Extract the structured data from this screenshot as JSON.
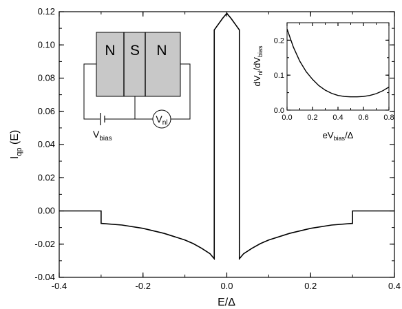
{
  "chart_data": [
    {
      "type": "line",
      "xlabel": "E/Δ",
      "ylabel_main": "I",
      "ylabel_sub": "qp",
      "ylabel_tail": " (E)",
      "xlim": [
        -0.4,
        0.4
      ],
      "ylim": [
        -0.04,
        0.12
      ],
      "x_ticks": [
        "-0.4",
        "-0.2",
        "0.0",
        "0.2",
        "0.4"
      ],
      "y_ticks": [
        "-0.04",
        "-0.02",
        "0.00",
        "0.02",
        "0.04",
        "0.06",
        "0.08",
        "0.10",
        "0.12"
      ],
      "series": [
        {
          "x": [
            -0.4,
            -0.3,
            -0.3,
            -0.25,
            -0.2,
            -0.15,
            -0.1,
            -0.08,
            -0.06,
            -0.04,
            -0.03,
            -0.03,
            -0.02,
            -0.01,
            0.0,
            0.01,
            0.02,
            0.03,
            0.03,
            0.04,
            0.06,
            0.08,
            0.1,
            0.15,
            0.2,
            0.25,
            0.3,
            0.3,
            0.4
          ],
          "y": [
            0.0,
            0.0,
            -0.0075,
            -0.0085,
            -0.0105,
            -0.0135,
            -0.0175,
            -0.0197,
            -0.0225,
            -0.0258,
            -0.0288,
            0.109,
            0.1125,
            0.116,
            0.119,
            0.116,
            0.1125,
            0.109,
            -0.0288,
            -0.0258,
            -0.0225,
            -0.0197,
            -0.0175,
            -0.0135,
            -0.0105,
            -0.0085,
            -0.0075,
            0.0,
            0.0
          ]
        }
      ]
    },
    {
      "type": "line",
      "xlabel_pre": "eV",
      "xlabel_sub": "bias",
      "xlabel_post": "/Δ",
      "ylabel_a": "dV",
      "ylabel_a_sub": "nl",
      "ylabel_b": "/dV",
      "ylabel_b_sub": "bias",
      "xlim": [
        0.0,
        0.8
      ],
      "ylim": [
        0.0,
        0.25
      ],
      "x_ticks": [
        "0.0",
        "0.2",
        "0.4",
        "0.6",
        "0.8"
      ],
      "y_ticks": [
        "0.0",
        "0.1",
        "0.2"
      ],
      "series": [
        {
          "x": [
            0.0,
            0.05,
            0.1,
            0.15,
            0.2,
            0.25,
            0.3,
            0.35,
            0.4,
            0.45,
            0.5,
            0.55,
            0.6,
            0.65,
            0.7,
            0.75,
            0.8
          ],
          "y": [
            0.232,
            0.18,
            0.14,
            0.11,
            0.088,
            0.07,
            0.057,
            0.048,
            0.042,
            0.039,
            0.038,
            0.038,
            0.039,
            0.042,
            0.047,
            0.055,
            0.066
          ]
        }
      ]
    }
  ],
  "schematic": {
    "regions": [
      "N",
      "S",
      "N"
    ],
    "vbias_main": "V",
    "vbias_sub": "bias",
    "vnl_main": "V",
    "vnl_sub": "nl"
  }
}
